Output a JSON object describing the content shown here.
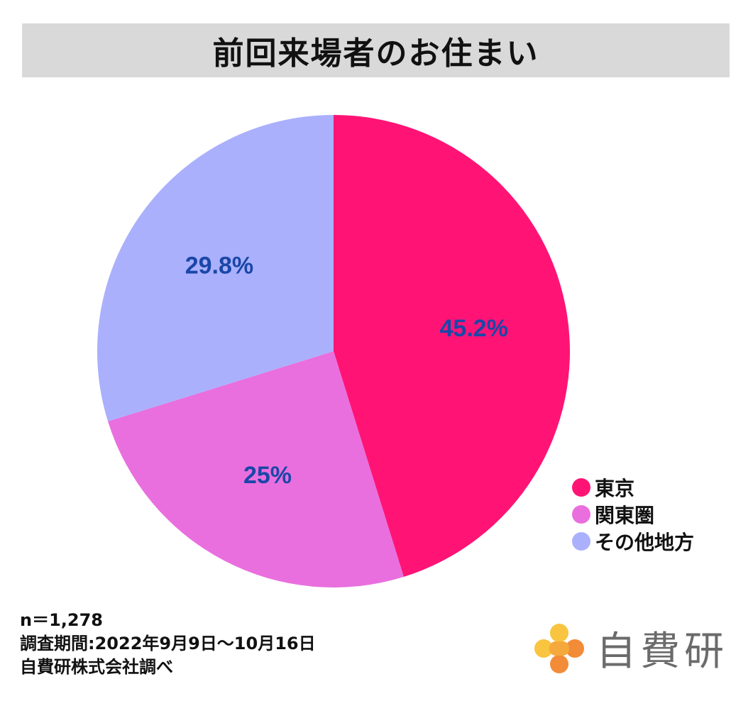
{
  "title": "前回来場者のお住まい",
  "chart_data": {
    "type": "pie",
    "title": "前回来場者のお住まい",
    "categories": [
      "東京",
      "関東圏",
      "その他地方"
    ],
    "values": [
      45.2,
      25,
      29.8
    ],
    "value_labels": [
      "45.2%",
      "25%",
      "29.8%"
    ],
    "colors": [
      "#ff1475",
      "#e96fde",
      "#aab0fc"
    ],
    "label_color": "#1a47a8",
    "start_angle": "12 o'clock",
    "direction": "clockwise",
    "legend_placement": "bottom-right"
  },
  "legend": [
    {
      "label": "東京",
      "color": "#ff1475"
    },
    {
      "label": "関東圏",
      "color": "#e96fde"
    },
    {
      "label": "その他地方",
      "color": "#aab0fc"
    }
  ],
  "footnote": {
    "sample": "n＝1,278",
    "period": "調査期間:2022年9月9日～10月16日",
    "source": "自費研株式会社調べ"
  },
  "logo": {
    "text": "自費研",
    "mark_colors": [
      "#f9c440",
      "#f28c38"
    ]
  }
}
